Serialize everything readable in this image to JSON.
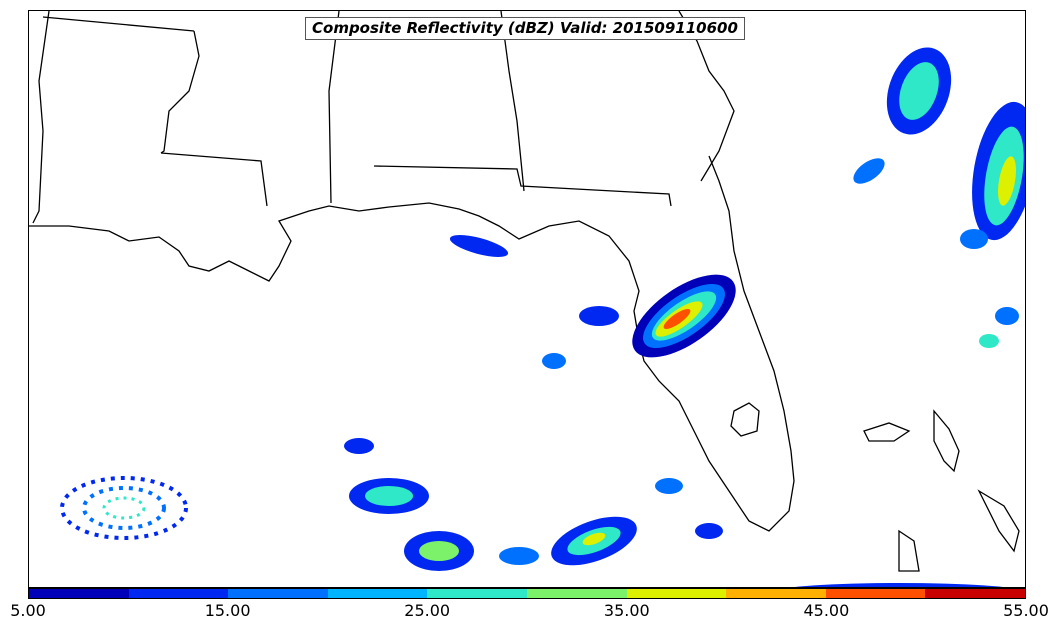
{
  "title": "Composite Reflectivity (dBZ) Valid: 201509110600",
  "colorbar": {
    "colors": [
      "#0000b8",
      "#0028f0",
      "#0070ff",
      "#00b4ff",
      "#2ee8c8",
      "#7cf26a",
      "#dcf000",
      "#ffb000",
      "#ff5000",
      "#c80000"
    ],
    "tick_labels": [
      "5.00",
      "15.00",
      "25.00",
      "35.00",
      "45.00",
      "55.00"
    ]
  },
  "colors": {
    "coastline": "#000000",
    "frame": "#000000",
    "background": "#ffffff"
  }
}
